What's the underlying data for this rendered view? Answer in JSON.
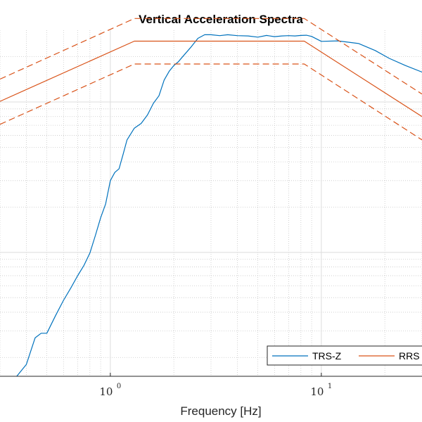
{
  "chart_data": {
    "type": "line",
    "title": "Vertical Acceleration Spectra",
    "xlabel": "Frequency [Hz]",
    "ylabel": "",
    "xscale": "log",
    "yscale": "log",
    "xlim": [
      0.3,
      30
    ],
    "ylim": [
      0.0015,
      0.3
    ],
    "x_ticks": [
      {
        "base": "10",
        "exp": "0",
        "value": 1
      },
      {
        "base": "10",
        "exp": "1",
        "value": 10
      }
    ],
    "grid": "on (major and minor, dotted)",
    "legend": {
      "placement": "bottom-right",
      "entries": [
        "TRS-Z",
        "RRS"
      ]
    },
    "colors": {
      "trs": "#0072BD",
      "rrs": "#D95319"
    },
    "series": [
      {
        "name": "TRS-Z",
        "style": "solid",
        "x": [
          0.36,
          0.4,
          0.44,
          0.47,
          0.5,
          0.55,
          0.6,
          0.65,
          0.7,
          0.75,
          0.8,
          0.85,
          0.9,
          0.95,
          1.0,
          1.05,
          1.1,
          1.15,
          1.2,
          1.3,
          1.4,
          1.5,
          1.6,
          1.7,
          1.8,
          1.9,
          2.0,
          2.1,
          2.2,
          2.4,
          2.6,
          2.8,
          3.0,
          3.3,
          3.6,
          4.0,
          4.5,
          5.0,
          5.5,
          6.0,
          6.5,
          7.0,
          7.5,
          8.0,
          8.5,
          9.0,
          10.0,
          12.0,
          15.0,
          18.0,
          21.0,
          25.0,
          30.0
        ],
        "y": [
          0.0015,
          0.0018,
          0.0027,
          0.0029,
          0.0029,
          0.0038,
          0.0048,
          0.0058,
          0.007,
          0.0082,
          0.0099,
          0.013,
          0.017,
          0.021,
          0.03,
          0.034,
          0.036,
          0.045,
          0.056,
          0.067,
          0.072,
          0.082,
          0.098,
          0.11,
          0.14,
          0.16,
          0.175,
          0.185,
          0.2,
          0.23,
          0.265,
          0.28,
          0.28,
          0.276,
          0.28,
          0.276,
          0.275,
          0.27,
          0.277,
          0.272,
          0.275,
          0.276,
          0.275,
          0.277,
          0.278,
          0.273,
          0.253,
          0.255,
          0.245,
          0.22,
          0.195,
          0.175,
          0.158
        ]
      },
      {
        "name": "RRS",
        "style": "solid",
        "x": [
          0.3,
          1.3,
          8.3,
          30.0
        ],
        "y": [
          0.101,
          0.254,
          0.254,
          0.08
        ]
      },
      {
        "name": "",
        "style": "dashed",
        "x": [
          0.3,
          1.3,
          8.3,
          30.0
        ],
        "y": [
          0.142,
          0.359,
          0.359,
          0.113
        ]
      },
      {
        "name": "",
        "style": "dashed",
        "x": [
          0.3,
          1.3,
          8.3,
          30.0
        ],
        "y": [
          0.071,
          0.179,
          0.179,
          0.056
        ]
      }
    ]
  }
}
